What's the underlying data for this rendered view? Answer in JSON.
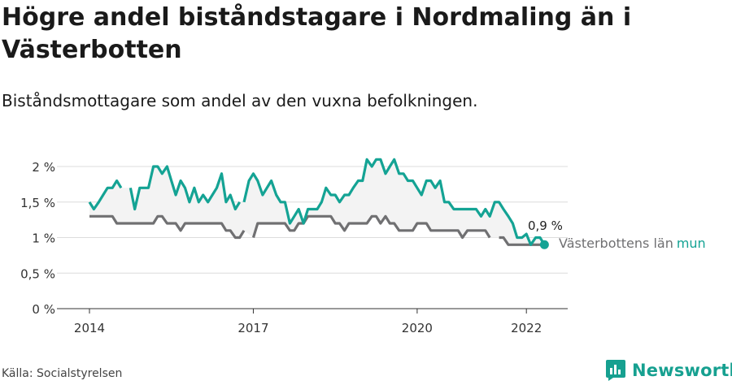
{
  "header": {
    "title": "Högre andel biståndstagare i Nordmaling än i Västerbotten",
    "subtitle": "Biståndsmottagare som andel av den vuxna befolkningen."
  },
  "footer": {
    "source": "Källa: Socialstyrelsen",
    "brand": "Newsworthy"
  },
  "colors": {
    "kommun": "#14a394",
    "lan": "#707072",
    "band": "#f3f3f3",
    "grid": "#dcdcdc",
    "brand": "#16a090"
  },
  "chart_data": {
    "type": "line",
    "x_unit": "year",
    "ylim": [
      0,
      2.1
    ],
    "yticks": [
      0,
      0.5,
      1,
      1.5,
      2
    ],
    "ytick_labels": [
      "0 %",
      "0,5 %",
      "1 %",
      "1,5 %",
      "2 %"
    ],
    "xlim": [
      2014.0,
      2022.75
    ],
    "xticks": [
      2014,
      2017,
      2020,
      2022
    ],
    "xtick_labels": [
      "2014",
      "2017",
      "2020",
      "2022"
    ],
    "grid": true,
    "end_value_label": "0,9 %",
    "end_marker": {
      "x": 2022.33,
      "y": 0.9
    },
    "series": [
      {
        "key": "kommun",
        "name": "mun",
        "segments": [
          [
            [
              2014.0,
              1.5
            ],
            [
              2014.08,
              1.4
            ],
            [
              2014.17,
              1.5
            ],
            [
              2014.25,
              1.6
            ],
            [
              2014.33,
              1.7
            ],
            [
              2014.42,
              1.7
            ],
            [
              2014.5,
              1.8
            ],
            [
              2014.58,
              1.7
            ]
          ],
          [
            [
              2014.75,
              1.7
            ],
            [
              2014.83,
              1.4
            ],
            [
              2014.92,
              1.7
            ],
            [
              2015.0,
              1.7
            ],
            [
              2015.08,
              1.7
            ],
            [
              2015.17,
              2.0
            ],
            [
              2015.25,
              2.0
            ],
            [
              2015.33,
              1.9
            ],
            [
              2015.42,
              2.0
            ],
            [
              2015.5,
              1.8
            ],
            [
              2015.58,
              1.6
            ],
            [
              2015.67,
              1.8
            ],
            [
              2015.75,
              1.7
            ],
            [
              2015.83,
              1.5
            ],
            [
              2015.92,
              1.7
            ],
            [
              2016.0,
              1.5
            ],
            [
              2016.08,
              1.6
            ],
            [
              2016.17,
              1.5
            ],
            [
              2016.25,
              1.6
            ],
            [
              2016.33,
              1.7
            ],
            [
              2016.42,
              1.9
            ],
            [
              2016.5,
              1.5
            ],
            [
              2016.58,
              1.6
            ],
            [
              2016.67,
              1.4
            ],
            [
              2016.75,
              1.5
            ]
          ],
          [
            [
              2016.83,
              1.5
            ],
            [
              2016.92,
              1.8
            ],
            [
              2017.0,
              1.9
            ],
            [
              2017.08,
              1.8
            ],
            [
              2017.17,
              1.6
            ],
            [
              2017.25,
              1.7
            ],
            [
              2017.33,
              1.8
            ],
            [
              2017.42,
              1.6
            ],
            [
              2017.5,
              1.5
            ],
            [
              2017.58,
              1.5
            ],
            [
              2017.67,
              1.2
            ],
            [
              2017.75,
              1.3
            ],
            [
              2017.83,
              1.4
            ],
            [
              2017.92,
              1.2
            ],
            [
              2018.0,
              1.4
            ],
            [
              2018.08,
              1.4
            ],
            [
              2018.17,
              1.4
            ],
            [
              2018.25,
              1.5
            ],
            [
              2018.33,
              1.7
            ],
            [
              2018.42,
              1.6
            ],
            [
              2018.5,
              1.6
            ],
            [
              2018.58,
              1.5
            ],
            [
              2018.67,
              1.6
            ],
            [
              2018.75,
              1.6
            ],
            [
              2018.83,
              1.7
            ],
            [
              2018.92,
              1.8
            ],
            [
              2019.0,
              1.8
            ],
            [
              2019.08,
              2.1
            ],
            [
              2019.17,
              2.0
            ],
            [
              2019.25,
              2.1
            ],
            [
              2019.33,
              2.1
            ],
            [
              2019.42,
              1.9
            ],
            [
              2019.5,
              2.0
            ],
            [
              2019.58,
              2.1
            ],
            [
              2019.67,
              1.9
            ],
            [
              2019.75,
              1.9
            ],
            [
              2019.83,
              1.8
            ],
            [
              2019.92,
              1.8
            ],
            [
              2020.0,
              1.7
            ],
            [
              2020.08,
              1.6
            ],
            [
              2020.17,
              1.8
            ],
            [
              2020.25,
              1.8
            ],
            [
              2020.33,
              1.7
            ],
            [
              2020.42,
              1.8
            ],
            [
              2020.5,
              1.5
            ],
            [
              2020.58,
              1.5
            ],
            [
              2020.67,
              1.4
            ],
            [
              2020.75,
              1.4
            ],
            [
              2020.83,
              1.4
            ],
            [
              2020.92,
              1.4
            ],
            [
              2021.0,
              1.4
            ],
            [
              2021.08,
              1.4
            ],
            [
              2021.17,
              1.3
            ],
            [
              2021.25,
              1.4
            ],
            [
              2021.33,
              1.3
            ],
            [
              2021.42,
              1.5
            ],
            [
              2021.5,
              1.5
            ],
            [
              2021.58,
              1.4
            ],
            [
              2021.67,
              1.3
            ],
            [
              2021.75,
              1.2
            ],
            [
              2021.83,
              1.0
            ],
            [
              2021.92,
              1.0
            ],
            [
              2022.0,
              1.05
            ],
            [
              2022.08,
              0.9
            ],
            [
              2022.17,
              1.0
            ],
            [
              2022.25,
              1.0
            ],
            [
              2022.33,
              0.9
            ]
          ]
        ]
      },
      {
        "key": "lan",
        "name": "Västerbottens län",
        "segments": [
          [
            [
              2014.0,
              1.3
            ],
            [
              2014.08,
              1.3
            ],
            [
              2014.17,
              1.3
            ],
            [
              2014.25,
              1.3
            ],
            [
              2014.33,
              1.3
            ],
            [
              2014.42,
              1.3
            ],
            [
              2014.5,
              1.2
            ],
            [
              2014.58,
              1.2
            ],
            [
              2014.67,
              1.2
            ],
            [
              2014.75,
              1.2
            ],
            [
              2014.83,
              1.2
            ],
            [
              2014.92,
              1.2
            ],
            [
              2015.0,
              1.2
            ],
            [
              2015.08,
              1.2
            ],
            [
              2015.17,
              1.2
            ],
            [
              2015.25,
              1.3
            ],
            [
              2015.33,
              1.3
            ],
            [
              2015.42,
              1.2
            ],
            [
              2015.5,
              1.2
            ],
            [
              2015.58,
              1.2
            ],
            [
              2015.67,
              1.1
            ],
            [
              2015.75,
              1.2
            ],
            [
              2015.83,
              1.2
            ],
            [
              2015.92,
              1.2
            ],
            [
              2016.0,
              1.2
            ],
            [
              2016.08,
              1.2
            ],
            [
              2016.17,
              1.2
            ],
            [
              2016.25,
              1.2
            ],
            [
              2016.33,
              1.2
            ],
            [
              2016.42,
              1.2
            ],
            [
              2016.5,
              1.1
            ],
            [
              2016.58,
              1.1
            ],
            [
              2016.67,
              1.0
            ],
            [
              2016.75,
              1.0
            ],
            [
              2016.83,
              1.1
            ]
          ],
          [
            [
              2017.0,
              1.0
            ],
            [
              2017.08,
              1.2
            ],
            [
              2017.17,
              1.2
            ],
            [
              2017.25,
              1.2
            ],
            [
              2017.33,
              1.2
            ],
            [
              2017.42,
              1.2
            ],
            [
              2017.5,
              1.2
            ],
            [
              2017.58,
              1.2
            ],
            [
              2017.67,
              1.1
            ],
            [
              2017.75,
              1.1
            ],
            [
              2017.83,
              1.2
            ],
            [
              2017.92,
              1.2
            ],
            [
              2018.0,
              1.3
            ],
            [
              2018.08,
              1.3
            ],
            [
              2018.17,
              1.3
            ],
            [
              2018.25,
              1.3
            ],
            [
              2018.33,
              1.3
            ],
            [
              2018.42,
              1.3
            ],
            [
              2018.5,
              1.2
            ],
            [
              2018.58,
              1.2
            ],
            [
              2018.67,
              1.1
            ],
            [
              2018.75,
              1.2
            ],
            [
              2018.83,
              1.2
            ],
            [
              2018.92,
              1.2
            ],
            [
              2019.0,
              1.2
            ],
            [
              2019.08,
              1.2
            ],
            [
              2019.17,
              1.3
            ],
            [
              2019.25,
              1.3
            ],
            [
              2019.33,
              1.2
            ],
            [
              2019.42,
              1.3
            ],
            [
              2019.5,
              1.2
            ],
            [
              2019.58,
              1.2
            ],
            [
              2019.67,
              1.1
            ],
            [
              2019.75,
              1.1
            ],
            [
              2019.83,
              1.1
            ],
            [
              2019.92,
              1.1
            ],
            [
              2020.0,
              1.2
            ],
            [
              2020.08,
              1.2
            ],
            [
              2020.17,
              1.2
            ],
            [
              2020.25,
              1.1
            ],
            [
              2020.33,
              1.1
            ],
            [
              2020.42,
              1.1
            ],
            [
              2020.5,
              1.1
            ],
            [
              2020.58,
              1.1
            ],
            [
              2020.67,
              1.1
            ],
            [
              2020.75,
              1.1
            ],
            [
              2020.83,
              1.0
            ],
            [
              2020.92,
              1.1
            ],
            [
              2021.0,
              1.1
            ],
            [
              2021.08,
              1.1
            ],
            [
              2021.17,
              1.1
            ],
            [
              2021.25,
              1.1
            ],
            [
              2021.33,
              1.0
            ]
          ],
          [
            [
              2021.5,
              1.0
            ],
            [
              2021.58,
              1.0
            ],
            [
              2021.67,
              0.9
            ],
            [
              2021.75,
              0.9
            ],
            [
              2021.83,
              0.9
            ],
            [
              2021.92,
              0.9
            ],
            [
              2022.0,
              0.9
            ],
            [
              2022.08,
              0.9
            ],
            [
              2022.17,
              0.9
            ],
            [
              2022.25,
              0.9
            ],
            [
              2022.33,
              0.9
            ]
          ]
        ]
      }
    ]
  }
}
